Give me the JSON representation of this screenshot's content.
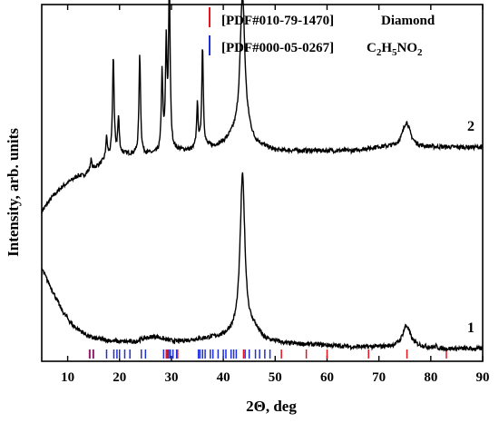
{
  "chart_data": {
    "type": "line",
    "xlabel": "2Θ, deg",
    "ylabel": "Intensity, arb. units",
    "xlim": [
      5,
      90
    ],
    "xticks": [
      10,
      20,
      30,
      40,
      50,
      60,
      70,
      80,
      90
    ],
    "grid": false,
    "legend_position": "top-right",
    "legend": [
      {
        "text": "[PDF#010-79-1470]",
        "suffix": "Diamond",
        "color": "#e8141c"
      },
      {
        "text": "[PDF#000-05-0267]",
        "suffix_parts": [
          "C",
          "2",
          "H",
          "5",
          "NO",
          "2"
        ],
        "color": "#1f2fd6"
      }
    ],
    "series": [
      {
        "label": "2",
        "peaks": [
          {
            "x": 14.5,
            "h": 0.03
          },
          {
            "x": 17.5,
            "h": 0.06
          },
          {
            "x": 18.8,
            "h": 0.28
          },
          {
            "x": 19.8,
            "h": 0.1
          },
          {
            "x": 23.9,
            "h": 0.28
          },
          {
            "x": 28.2,
            "h": 0.22
          },
          {
            "x": 29.0,
            "h": 0.29
          },
          {
            "x": 29.6,
            "h": 0.47
          },
          {
            "x": 35.0,
            "h": 0.12
          },
          {
            "x": 36.0,
            "h": 0.28
          },
          {
            "x": 43.7,
            "h": 0.4
          },
          {
            "x": 75.3,
            "h": 0.07
          }
        ],
        "points": [
          [
            5,
            0.42
          ],
          [
            7,
            0.46
          ],
          [
            9,
            0.49
          ],
          [
            11,
            0.51
          ],
          [
            12,
            0.52
          ],
          [
            13,
            0.52
          ],
          [
            14,
            0.53
          ],
          [
            15,
            0.54
          ],
          [
            16,
            0.55
          ],
          [
            17,
            0.56
          ],
          [
            18,
            0.57
          ],
          [
            20,
            0.58
          ],
          [
            22,
            0.58
          ],
          [
            24,
            0.58
          ],
          [
            26,
            0.58
          ],
          [
            28,
            0.58
          ],
          [
            30,
            0.59
          ],
          [
            32,
            0.59
          ],
          [
            34,
            0.59
          ],
          [
            36,
            0.6
          ],
          [
            38,
            0.6
          ],
          [
            40,
            0.61
          ],
          [
            41,
            0.62
          ],
          [
            42,
            0.63
          ],
          [
            45,
            0.63
          ],
          [
            46,
            0.61
          ],
          [
            48,
            0.6
          ],
          [
            50,
            0.59
          ],
          [
            55,
            0.59
          ],
          [
            60,
            0.59
          ],
          [
            65,
            0.59
          ],
          [
            70,
            0.6
          ],
          [
            73,
            0.6
          ],
          [
            78,
            0.6
          ],
          [
            80,
            0.6
          ],
          [
            85,
            0.6
          ],
          [
            90,
            0.6
          ]
        ]
      },
      {
        "label": "1",
        "peaks": [
          {
            "x": 43.7,
            "h": 0.44
          },
          {
            "x": 75.3,
            "h": 0.06
          },
          {
            "x": 81.0,
            "h": 0.005
          }
        ],
        "points": [
          [
            5,
            0.26
          ],
          [
            6,
            0.23
          ],
          [
            7,
            0.2
          ],
          [
            8,
            0.17
          ],
          [
            9,
            0.14
          ],
          [
            10,
            0.12
          ],
          [
            11,
            0.1
          ],
          [
            12,
            0.09
          ],
          [
            13,
            0.08
          ],
          [
            14,
            0.07
          ],
          [
            15,
            0.065
          ],
          [
            17,
            0.06
          ],
          [
            20,
            0.055
          ],
          [
            23,
            0.055
          ],
          [
            25,
            0.065
          ],
          [
            27,
            0.07
          ],
          [
            29,
            0.06
          ],
          [
            31,
            0.055
          ],
          [
            34,
            0.06
          ],
          [
            37,
            0.065
          ],
          [
            40,
            0.07
          ],
          [
            42,
            0.08
          ],
          [
            46,
            0.09
          ],
          [
            48,
            0.06
          ],
          [
            52,
            0.05
          ],
          [
            60,
            0.045
          ],
          [
            65,
            0.04
          ],
          [
            70,
            0.04
          ],
          [
            78,
            0.04
          ],
          [
            82,
            0.035
          ],
          [
            86,
            0.035
          ],
          [
            90,
            0.035
          ]
        ]
      }
    ],
    "reference_lines": {
      "Diamond": [
        14.3,
        15.0,
        29.0,
        29.3,
        31.2,
        43.9,
        51.2,
        56.0,
        60.0,
        68.0,
        75.4,
        83.0
      ],
      "C2H5NO2": [
        14.2,
        14.9,
        17.5,
        18.9,
        19.5,
        20.0,
        21.0,
        22.0,
        24.2,
        25.0,
        28.5,
        29.2,
        29.5,
        29.8,
        30.3,
        31.0,
        35.2,
        35.5,
        36.0,
        36.5,
        37.5,
        38.0,
        39.0,
        40.0,
        40.5,
        41.5,
        42.0,
        42.5,
        44.2,
        45.0,
        46.2,
        47.0,
        48.0,
        49.0
      ]
    }
  }
}
